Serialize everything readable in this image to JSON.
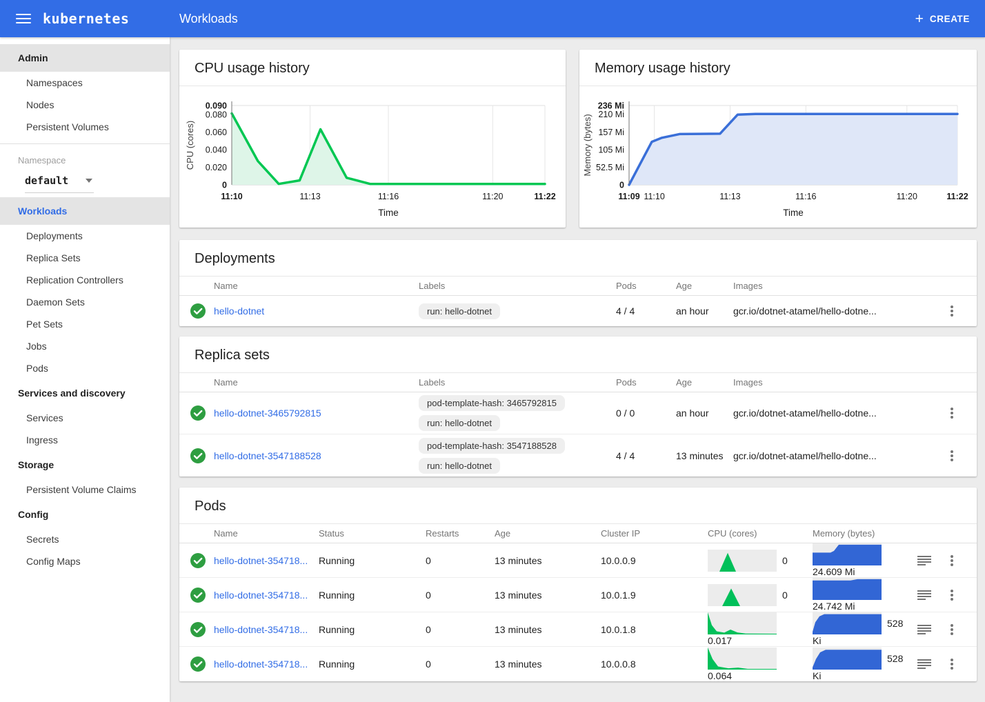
{
  "colors": {
    "header_blue": "#326de6",
    "link_blue": "#326de6",
    "success_green": "#2e9e41",
    "cpu_line": "#00c752",
    "cpu_fill": "#def5e8",
    "mem_line": "#3a6fd8",
    "mem_fill": "#dfe7f8",
    "spark_green": "#00c05a",
    "spark_blue": "#3266d5",
    "spark_bg": "#ececec"
  },
  "header": {
    "brand": "kubernetes",
    "page_title": "Workloads",
    "plus": "+",
    "create_label": "CREATE"
  },
  "sidebar": {
    "sections": [
      {
        "type": "group",
        "label": "Admin",
        "highlighted": true
      },
      {
        "type": "item",
        "label": "Namespaces"
      },
      {
        "type": "item",
        "label": "Nodes"
      },
      {
        "type": "item",
        "label": "Persistent Volumes"
      },
      {
        "type": "divider"
      },
      {
        "type": "namespace",
        "label": "Namespace",
        "value": "default"
      },
      {
        "type": "group",
        "label": "Workloads",
        "selected": true
      },
      {
        "type": "item",
        "label": "Deployments"
      },
      {
        "type": "item",
        "label": "Replica Sets"
      },
      {
        "type": "item",
        "label": "Replication Controllers"
      },
      {
        "type": "item",
        "label": "Daemon Sets"
      },
      {
        "type": "item",
        "label": "Pet Sets"
      },
      {
        "type": "item",
        "label": "Jobs"
      },
      {
        "type": "item",
        "label": "Pods"
      },
      {
        "type": "group",
        "label": "Services and discovery"
      },
      {
        "type": "item",
        "label": "Services"
      },
      {
        "type": "item",
        "label": "Ingress"
      },
      {
        "type": "group",
        "label": "Storage"
      },
      {
        "type": "item",
        "label": "Persistent Volume Claims"
      },
      {
        "type": "group",
        "label": "Config"
      },
      {
        "type": "item",
        "label": "Secrets"
      },
      {
        "type": "item",
        "label": "Config Maps"
      }
    ]
  },
  "chart_data": [
    {
      "type": "area",
      "title": "CPU usage history",
      "xlabel": "Time",
      "ylabel": "CPU (cores)",
      "xlim": [
        0,
        12
      ],
      "ylim": [
        0,
        0.09
      ],
      "grid": "vertical-plus-top",
      "legend": "none",
      "x_ticks": [
        {
          "x": 0,
          "label": "11:10",
          "bold": true
        },
        {
          "x": 3,
          "label": "11:13"
        },
        {
          "x": 6,
          "label": "11:16"
        },
        {
          "x": 10,
          "label": "11:20"
        },
        {
          "x": 12,
          "label": "11:22",
          "bold": true
        }
      ],
      "y_ticks": [
        {
          "y": 0,
          "label": "0",
          "bold": true
        },
        {
          "y": 0.02,
          "label": "0.020"
        },
        {
          "y": 0.04,
          "label": "0.040"
        },
        {
          "y": 0.06,
          "label": "0.060"
        },
        {
          "y": 0.08,
          "label": "0.080"
        },
        {
          "y": 0.09,
          "label": "0.090",
          "bold": true
        }
      ],
      "points": [
        [
          0,
          0.081
        ],
        [
          1,
          0.027
        ],
        [
          1.8,
          0.001
        ],
        [
          2.6,
          0.005
        ],
        [
          3.4,
          0.063
        ],
        [
          4.4,
          0.008
        ],
        [
          5.3,
          0.001
        ],
        [
          12,
          0.001
        ]
      ]
    },
    {
      "type": "area",
      "title": "Memory usage history",
      "xlabel": "Time",
      "ylabel": "Memory (bytes)",
      "xlim": [
        0,
        13
      ],
      "ylim": [
        0,
        236
      ],
      "grid": "vertical-plus-top",
      "legend": "none",
      "x_ticks": [
        {
          "x": 0,
          "label": "11:09",
          "bold": true
        },
        {
          "x": 1,
          "label": "11:10"
        },
        {
          "x": 4,
          "label": "11:13"
        },
        {
          "x": 7,
          "label": "11:16"
        },
        {
          "x": 11,
          "label": "11:20"
        },
        {
          "x": 13,
          "label": "11:22",
          "bold": true
        }
      ],
      "y_ticks": [
        {
          "y": 0,
          "label": "0",
          "bold": true
        },
        {
          "y": 52.5,
          "label": "52.5 Mi"
        },
        {
          "y": 105,
          "label": "105 Mi"
        },
        {
          "y": 157,
          "label": "157 Mi"
        },
        {
          "y": 210,
          "label": "210 Mi"
        },
        {
          "y": 236,
          "label": "236 Mi",
          "bold": true
        }
      ],
      "points": [
        [
          0,
          0
        ],
        [
          0.9,
          128
        ],
        [
          1.3,
          140
        ],
        [
          2,
          151
        ],
        [
          3.6,
          152
        ],
        [
          4.3,
          209
        ],
        [
          5,
          211
        ],
        [
          13,
          211
        ]
      ]
    }
  ],
  "deployments": {
    "title": "Deployments",
    "columns": {
      "name": "Name",
      "labels": "Labels",
      "pods": "Pods",
      "age": "Age",
      "images": "Images"
    },
    "rows": [
      {
        "name": "hello-dotnet",
        "labels": [
          "run: hello-dotnet"
        ],
        "pods": "4 / 4",
        "age": "an hour",
        "images": "gcr.io/dotnet-atamel/hello-dotne..."
      }
    ]
  },
  "replica_sets": {
    "title": "Replica sets",
    "columns": {
      "name": "Name",
      "labels": "Labels",
      "pods": "Pods",
      "age": "Age",
      "images": "Images"
    },
    "rows": [
      {
        "name": "hello-dotnet-3465792815",
        "labels": [
          "pod-template-hash: 3465792815",
          "run: hello-dotnet"
        ],
        "pods": "0 / 0",
        "age": "an hour",
        "images": "gcr.io/dotnet-atamel/hello-dotne..."
      },
      {
        "name": "hello-dotnet-3547188528",
        "labels": [
          "pod-template-hash: 3547188528",
          "run: hello-dotnet"
        ],
        "pods": "4 / 4",
        "age": "13 minutes",
        "images": "gcr.io/dotnet-atamel/hello-dotne..."
      }
    ]
  },
  "pods": {
    "title": "Pods",
    "columns": {
      "name": "Name",
      "status": "Status",
      "restarts": "Restarts",
      "age": "Age",
      "cluster_ip": "Cluster IP",
      "cpu": "CPU (cores)",
      "memory": "Memory (bytes)"
    },
    "rows": [
      {
        "name": "hello-dotnet-354718...",
        "status": "Running",
        "restarts": "0",
        "age": "13 minutes",
        "cluster_ip": "10.0.0.9",
        "cpu": {
          "side": "0",
          "below": "",
          "spark": [
            [
              0,
              0
            ],
            [
              17,
              0
            ],
            [
              29,
              85
            ],
            [
              41,
              0
            ],
            [
              100,
              0
            ]
          ]
        },
        "memory": {
          "side": "",
          "below": "24.609 Mi",
          "spark": [
            [
              0,
              58
            ],
            [
              26,
              58
            ],
            [
              31,
              66
            ],
            [
              38,
              94
            ],
            [
              100,
              94
            ]
          ]
        }
      },
      {
        "name": "hello-dotnet-354718...",
        "status": "Running",
        "restarts": "0",
        "age": "13 minutes",
        "cluster_ip": "10.0.1.9",
        "cpu": {
          "side": "0",
          "below": "",
          "spark": [
            [
              0,
              0
            ],
            [
              21,
              0
            ],
            [
              34,
              80
            ],
            [
              47,
              0
            ],
            [
              100,
              0
            ]
          ]
        },
        "memory": {
          "side": "",
          "below": "24.742 Mi",
          "spark": [
            [
              0,
              88
            ],
            [
              55,
              88
            ],
            [
              65,
              94
            ],
            [
              100,
              94
            ]
          ]
        }
      },
      {
        "name": "hello-dotnet-354718...",
        "status": "Running",
        "restarts": "0",
        "age": "13 minutes",
        "cluster_ip": "10.0.1.8",
        "cpu": {
          "side": "",
          "below": "0.017",
          "spark": [
            [
              0,
              100
            ],
            [
              6,
              42
            ],
            [
              13,
              14
            ],
            [
              24,
              8
            ],
            [
              33,
              22
            ],
            [
              43,
              9
            ],
            [
              55,
              4
            ],
            [
              100,
              3
            ]
          ]
        },
        "memory": {
          "side": "528",
          "below": "Ki",
          "spark": [
            [
              0,
              12
            ],
            [
              4,
              55
            ],
            [
              10,
              82
            ],
            [
              17,
              92
            ],
            [
              100,
              92
            ]
          ]
        }
      },
      {
        "name": "hello-dotnet-354718...",
        "status": "Running",
        "restarts": "0",
        "age": "13 minutes",
        "cluster_ip": "10.0.0.8",
        "cpu": {
          "side": "",
          "below": "0.064",
          "spark": [
            [
              0,
              100
            ],
            [
              7,
              48
            ],
            [
              15,
              14
            ],
            [
              30,
              6
            ],
            [
              44,
              9
            ],
            [
              58,
              3
            ],
            [
              100,
              3
            ]
          ]
        },
        "memory": {
          "side": "528",
          "below": "Ki",
          "spark": [
            [
              0,
              10
            ],
            [
              5,
              48
            ],
            [
              11,
              78
            ],
            [
              19,
              90
            ],
            [
              100,
              90
            ]
          ]
        }
      }
    ]
  }
}
